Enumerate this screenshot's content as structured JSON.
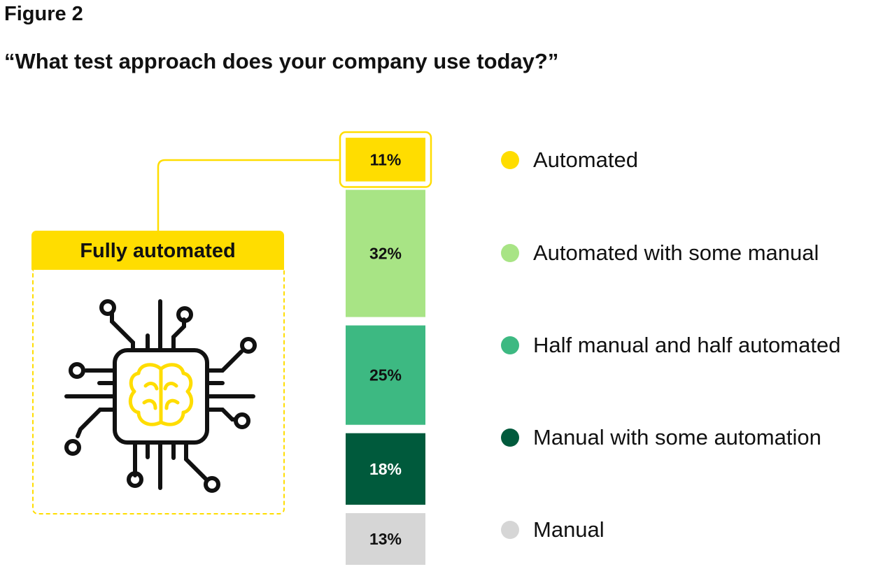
{
  "figure_label": "Figure 2",
  "question": "“What test approach does your company use today?”",
  "callout": {
    "title": "Fully automated",
    "icon": "ai-chip-brain-icon"
  },
  "colors": {
    "accent": "#FFDD00",
    "text": "#111111"
  },
  "chart_data": {
    "type": "bar",
    "orientation": "stacked-vertical",
    "series": [
      {
        "label": "Automated",
        "value": 11,
        "display": "11%",
        "color": "#FFDD00",
        "text_color": "#111111"
      },
      {
        "label": "Automated with some manual",
        "value": 32,
        "display": "32%",
        "color": "#A8E485",
        "text_color": "#111111"
      },
      {
        "label": "Half manual and half automated",
        "value": 25,
        "display": "25%",
        "color": "#3DB982",
        "text_color": "#111111"
      },
      {
        "label": "Manual with some automation",
        "value": 18,
        "display": "18%",
        "color": "#005A3C",
        "text_color": "#FFFFFF"
      },
      {
        "label": "Manual",
        "value": 13,
        "display": "13%",
        "color": "#D6D6D6",
        "text_color": "#111111"
      }
    ],
    "highlighted_segment": "Automated",
    "legend_position": "right"
  }
}
